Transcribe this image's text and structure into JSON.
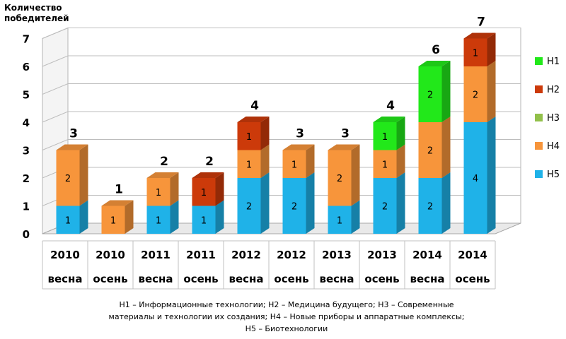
{
  "chart_data": {
    "type": "bar",
    "stacked": true,
    "ylabel": "Количество победителей",
    "ylim": [
      0,
      7
    ],
    "yticks": [
      "0",
      "1",
      "2",
      "3",
      "4",
      "5",
      "6",
      "7"
    ],
    "categories": [
      {
        "year": "2010",
        "season": "весна"
      },
      {
        "year": "2010",
        "season": "осень"
      },
      {
        "year": "2011",
        "season": "весна"
      },
      {
        "year": "2011",
        "season": "осень"
      },
      {
        "year": "2012",
        "season": "весна"
      },
      {
        "year": "2012",
        "season": "осень"
      },
      {
        "year": "2013",
        "season": "весна"
      },
      {
        "year": "2013",
        "season": "осень"
      },
      {
        "year": "2014",
        "season": "весна"
      },
      {
        "year": "2014",
        "season": "осень"
      }
    ],
    "series": [
      {
        "name": "Н5",
        "color": "#1fb2e8",
        "values": [
          1,
          0,
          1,
          1,
          2,
          2,
          1,
          2,
          2,
          4
        ]
      },
      {
        "name": "Н4",
        "color": "#f7953b",
        "values": [
          2,
          1,
          1,
          0,
          1,
          1,
          2,
          1,
          2,
          2
        ]
      },
      {
        "name": "Н3",
        "color": "#92c04a",
        "values": [
          0,
          0,
          0,
          0,
          0,
          0,
          0,
          0,
          0,
          0
        ]
      },
      {
        "name": "Н2",
        "color": "#cc3a0a",
        "values": [
          0,
          0,
          0,
          1,
          1,
          0,
          0,
          0,
          0,
          1
        ]
      },
      {
        "name": "Н1",
        "color": "#22e81a",
        "values": [
          0,
          0,
          0,
          0,
          0,
          0,
          0,
          1,
          2,
          0
        ]
      }
    ],
    "totals": [
      3,
      1,
      2,
      2,
      4,
      3,
      3,
      4,
      6,
      7
    ],
    "legend_order": [
      "Н1",
      "Н2",
      "Н3",
      "Н4",
      "Н5"
    ],
    "legend_position": "right",
    "grid": true
  },
  "caption": "Н1 – Информационные технологии;  Н2 – Медицина будущего; Н3 – Современные материалы и технологии их создания; Н4 – Новые приборы и аппаратные комплексы; Н5 – Биотехнологии"
}
